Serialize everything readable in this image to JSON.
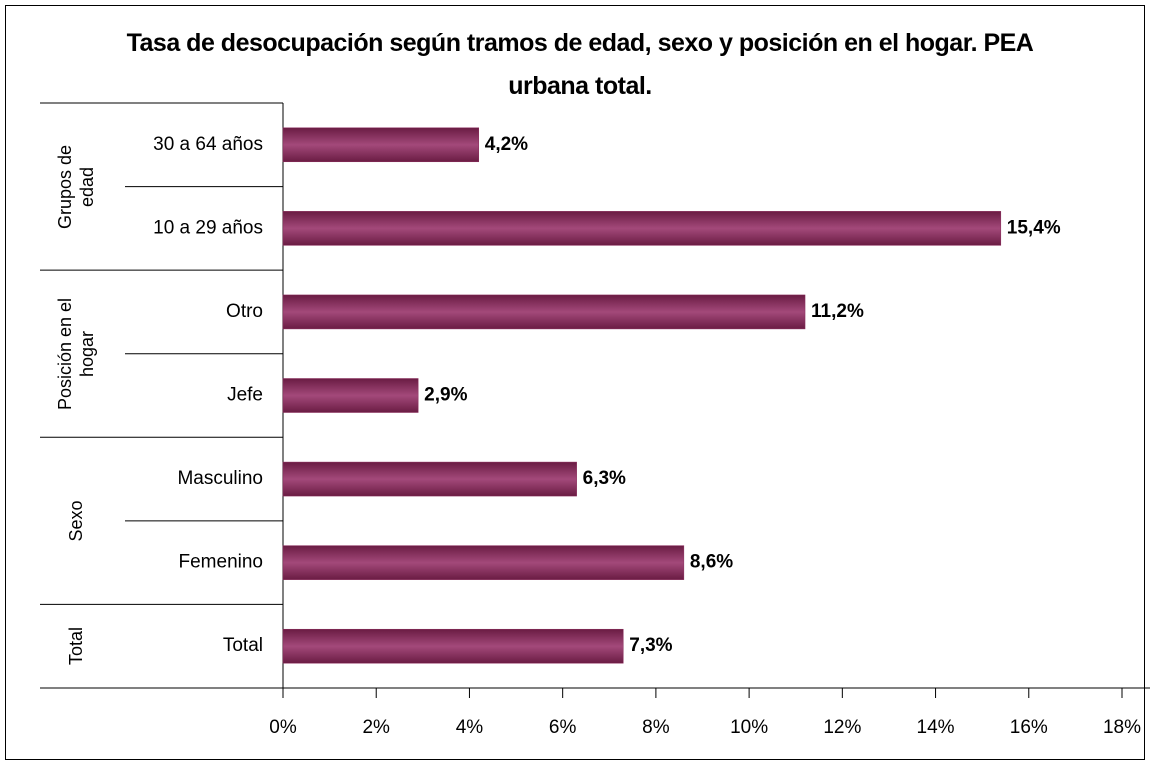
{
  "chart_data": {
    "type": "bar",
    "title": "Tasa de desocupación según tramos de edad, sexo y posición en el hogar. PEA urbana total.",
    "groups": [
      {
        "name": "Grupos de edad",
        "categories": [
          "30 a 64 años",
          "10 a 29 años"
        ],
        "values": [
          4.2,
          15.4
        ],
        "value_labels": [
          "4,2%",
          "15,4%"
        ]
      },
      {
        "name": "Posición en el hogar",
        "categories": [
          "Otro",
          "Jefe"
        ],
        "values": [
          11.2,
          2.9
        ],
        "value_labels": [
          "11,2%",
          "2,9%"
        ]
      },
      {
        "name": "Sexo",
        "categories": [
          "Masculino",
          "Femenino"
        ],
        "values": [
          6.3,
          8.6
        ],
        "value_labels": [
          "6,3%",
          "8,6%"
        ]
      },
      {
        "name": "Total",
        "categories": [
          "Total"
        ],
        "values": [
          7.3
        ],
        "value_labels": [
          "7,3%"
        ]
      }
    ],
    "color": "#8a2a5a",
    "xlim": [
      0,
      18
    ],
    "xticks": [
      {
        "value": 0,
        "label": "0%"
      },
      {
        "value": 2,
        "label": "2%"
      },
      {
        "value": 4,
        "label": "4%"
      },
      {
        "value": 6,
        "label": "6%"
      },
      {
        "value": 8,
        "label": "8%"
      },
      {
        "value": 10,
        "label": "10%"
      },
      {
        "value": 12,
        "label": "12%"
      },
      {
        "value": 14,
        "label": "14%"
      },
      {
        "value": 16,
        "label": "16%"
      },
      {
        "value": 18,
        "label": "18%"
      }
    ]
  }
}
